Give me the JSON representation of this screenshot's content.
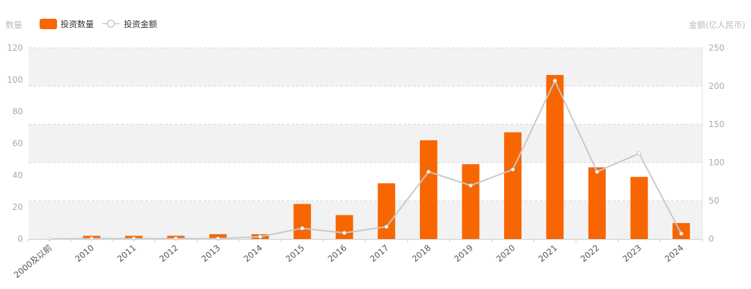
{
  "chart_data": {
    "type": "bar+line",
    "categories": [
      "2000及以前",
      "2010",
      "2011",
      "2012",
      "2013",
      "2014",
      "2015",
      "2016",
      "2017",
      "2018",
      "2019",
      "2020",
      "2021",
      "2022",
      "2023",
      "2024"
    ],
    "series": [
      {
        "name": "投资数量",
        "type": "bar",
        "axis": "left",
        "color": "#F76600",
        "values": [
          0,
          2,
          2,
          2,
          3,
          3,
          22,
          15,
          35,
          62,
          47,
          67,
          103,
          45,
          39,
          10
        ]
      },
      {
        "name": "投资金额",
        "type": "line",
        "axis": "right",
        "color": "#C8C8C8",
        "values": [
          0,
          0.5,
          0.5,
          0.5,
          0.5,
          3,
          14,
          8,
          16,
          88,
          70,
          91,
          207,
          88,
          112,
          7
        ]
      }
    ],
    "ylabel_left": "数量",
    "ylabel_right": "金额(亿人民币)",
    "ylim_left": [
      0,
      120
    ],
    "yticks_left": [
      "0",
      "20",
      "40",
      "60",
      "80",
      "100",
      "120"
    ],
    "ylim_right": [
      0,
      250
    ],
    "yticks_right": [
      "0",
      "50",
      "100",
      "150",
      "200",
      "250"
    ],
    "legend_position": "top-left",
    "grid": true
  }
}
